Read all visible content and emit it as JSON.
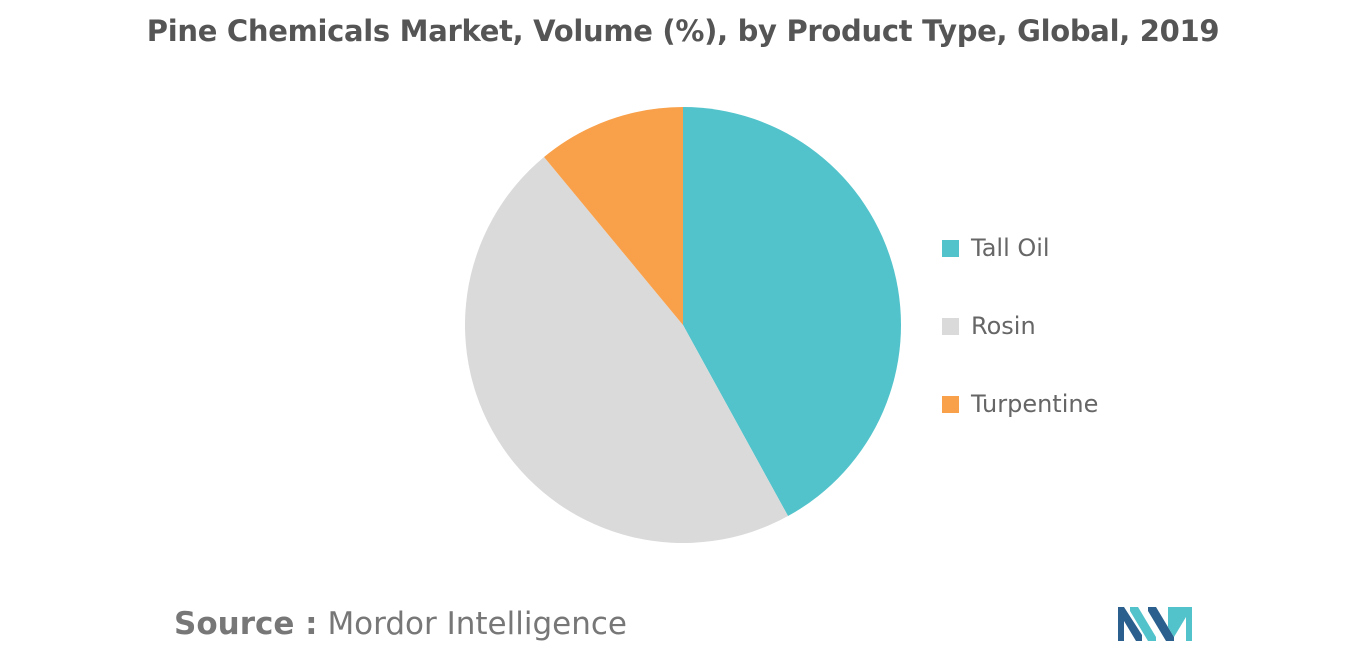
{
  "chart_data": {
    "type": "pie",
    "title": "Pine Chemicals Market, Volume (%), by Product Type, Global, 2019",
    "categories": [
      "Tall Oil",
      "Rosin",
      "Turpentine"
    ],
    "values": [
      42,
      47,
      11
    ],
    "colors": [
      "#52C3CB",
      "#DADADA",
      "#F9A04A"
    ],
    "legend_position": "right",
    "start_angle_deg": 0,
    "direction": "clockwise"
  },
  "source": {
    "label": "Source :",
    "text": "Mordor Intelligence"
  },
  "logo": {
    "icon": "mordor-intelligence-logo",
    "colors": [
      "#2B5F8E",
      "#52C3CB"
    ]
  }
}
